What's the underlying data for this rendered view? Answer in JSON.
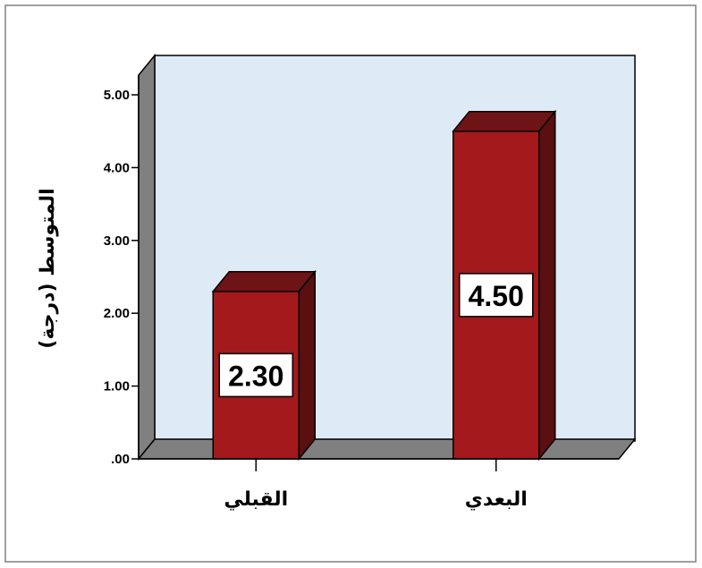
{
  "chart_data": {
    "type": "bar",
    "categories": [
      "القبلي",
      "البعدي"
    ],
    "values": [
      2.3,
      4.5
    ],
    "data_labels": [
      "2.30",
      "4.50"
    ],
    "title": "",
    "xlabel": "",
    "ylabel": "المتوسط (درجة)",
    "ylim": [
      0,
      5
    ],
    "yticks": [
      ".00",
      "1.00",
      "2.00",
      "3.00",
      "4.00",
      "5.00"
    ],
    "grid": false,
    "legend": "none",
    "colors": {
      "bar_front": "#a3191c",
      "bar_top": "#6e1416",
      "bar_side": "#5a0f10",
      "plot_back": "#deebf7",
      "plot_wall": "#808080",
      "floor": "#808080",
      "frame": "#808080"
    }
  }
}
